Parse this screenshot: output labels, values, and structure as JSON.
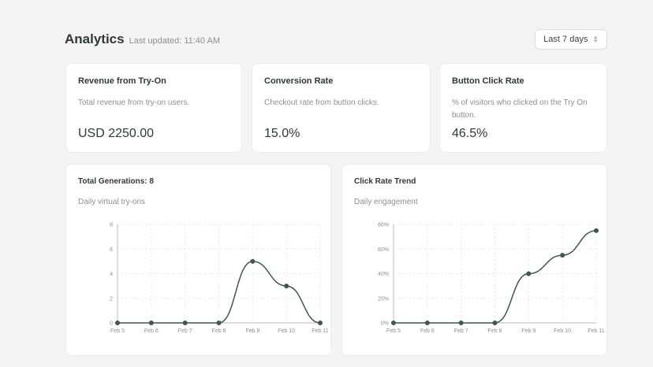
{
  "header": {
    "title": "Analytics",
    "last_updated": "Last updated: 11:40 AM",
    "range_label": "Last 7 days",
    "range_chevron": "⌃⌄"
  },
  "stats": [
    {
      "title": "Revenue from Try-On",
      "description": "Total revenue from try-on users.",
      "value": "USD 2250.00"
    },
    {
      "title": "Conversion Rate",
      "description": "Checkout rate from button clicks.",
      "value": "15.0%"
    },
    {
      "title": "Button Click Rate",
      "description": "% of visitors who clicked on the Try On button.",
      "value": "46.5%"
    }
  ],
  "charts": {
    "generations": {
      "title": "Total Generations: 8",
      "subtitle": "Daily virtual try-ons"
    },
    "click_rate": {
      "title": "Click Rate Trend",
      "subtitle": "Daily engagement"
    }
  },
  "colors": {
    "line": "#3f5848",
    "grid": "#e6e8e6",
    "axis": "#b9bebb",
    "muted": "#8b918d"
  },
  "chart_data": [
    {
      "type": "line",
      "title": "Total Generations: 8",
      "subtitle": "Daily virtual try-ons",
      "categories": [
        "Feb 5",
        "Feb 6",
        "Feb 7",
        "Feb 8",
        "Feb 9",
        "Feb 10",
        "Feb 11"
      ],
      "series": [
        {
          "values": [
            0,
            0,
            0,
            0,
            5,
            3,
            0
          ]
        }
      ],
      "ylim": [
        0,
        8
      ],
      "yticks": [
        0,
        2,
        4,
        6,
        8
      ],
      "ytick_labels": [
        "0",
        "2",
        "4",
        "6",
        "8"
      ],
      "grid": true,
      "smooth": true
    },
    {
      "type": "line",
      "title": "Click Rate Trend",
      "subtitle": "Daily engagement",
      "categories": [
        "Feb 5",
        "Feb 6",
        "Feb 7",
        "Feb 8",
        "Feb 9",
        "Feb 10",
        "Feb 11"
      ],
      "series": [
        {
          "values": [
            0,
            0,
            0,
            0,
            40,
            55,
            75
          ]
        }
      ],
      "ylim": [
        0,
        80
      ],
      "yticks": [
        0,
        20,
        40,
        60,
        80
      ],
      "ytick_labels": [
        "0%",
        "20%",
        "40%",
        "60%",
        "80%"
      ],
      "grid": true,
      "smooth": true
    }
  ]
}
